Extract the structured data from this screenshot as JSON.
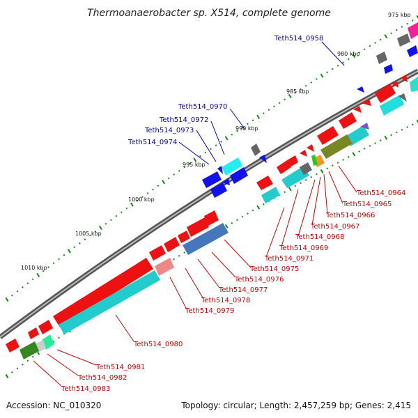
{
  "title": "Thermoanaerobacter sp. X514, complete genome",
  "footer": {
    "accession": "Accession: NC_010320",
    "topology": "Topology: circular; Length: 2,457,259 bp; Genes: 2,415"
  },
  "ticks": [
    "975 kbp",
    "980 kbp",
    "985 kbp",
    "990 kbp",
    "995 kbp",
    "1000 kbp",
    "1005 kbp",
    "1010 kbp"
  ],
  "colors": {
    "forward_gene": "#ee1111",
    "reverse_gene": "#1111ee",
    "cds_cyan": "#22dddd",
    "backbone": "#777777",
    "label_forward": "#cc0000",
    "label_reverse": "#0000aa"
  },
  "gene_labels_top": [
    "Teth514_0958",
    "Teth514_0970",
    "Teth514_0972",
    "Teth514_0973",
    "Teth514_0974"
  ],
  "gene_labels_bottom": [
    "Teth514_0964",
    "Teth514_0965",
    "Teth514_0966",
    "Teth514_0967",
    "Teth514_0968",
    "Teth514_0969",
    "Teth514_0971",
    "Teth514_0975",
    "Teth514_0976",
    "Teth514_0977",
    "Teth514_0978",
    "Teth514_0979",
    "Teth514_0980",
    "Teth514_0981",
    "Teth514_0982",
    "Teth514_0983"
  ]
}
